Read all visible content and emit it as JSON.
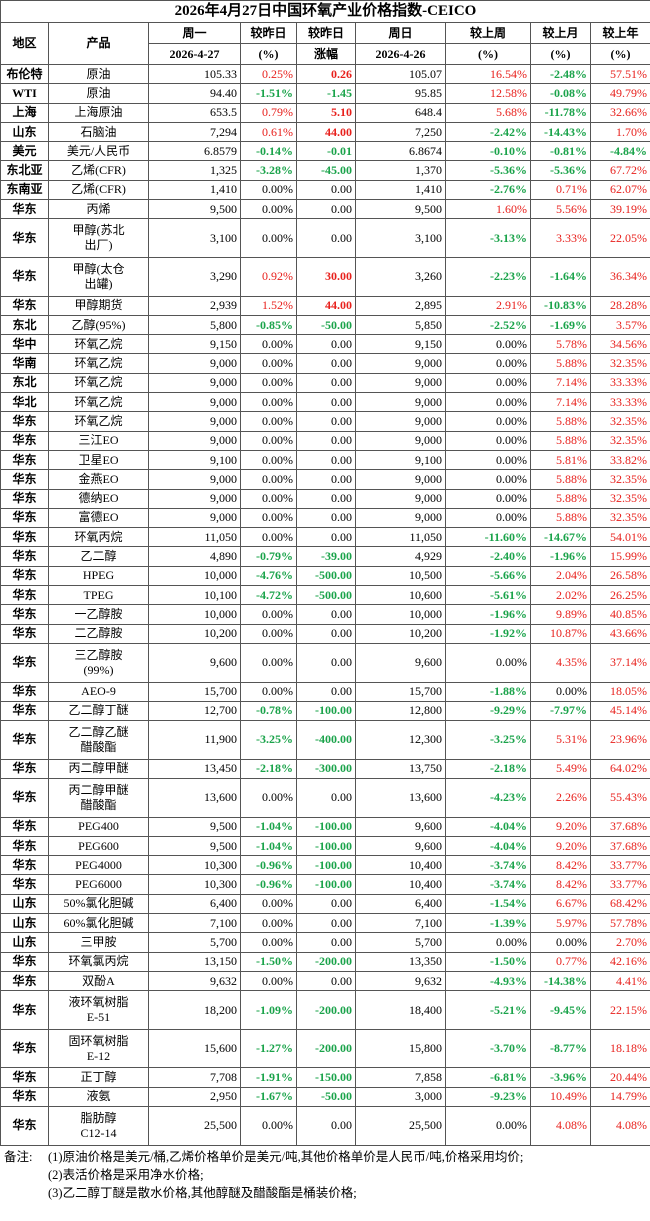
{
  "title": "2026年4月27日中国环氧产业价格指数-CEICO",
  "header": {
    "row1": [
      "地区",
      "产品",
      "周一",
      "较昨日",
      "较昨日",
      "周日",
      "较上周",
      "较上月",
      "较上年"
    ],
    "row2": [
      "2026-4-27",
      "(%)",
      "涨幅",
      "2026-4-26",
      "(%)",
      "(%)",
      "(%)"
    ]
  },
  "table": {
    "rows": [
      [
        "布伦特",
        "原油",
        "105.33",
        "0.25%",
        "0.26",
        "105.07",
        "16.54%",
        "-2.48%",
        "57.51%"
      ],
      [
        "WTI",
        "原油",
        "94.40",
        "-1.51%",
        "-1.45",
        "95.85",
        "12.58%",
        "-0.08%",
        "49.79%"
      ],
      [
        "上海",
        "上海原油",
        "653.5",
        "0.79%",
        "5.10",
        "648.4",
        "5.68%",
        "-11.78%",
        "32.66%"
      ],
      [
        "山东",
        "石脑油",
        "7,294",
        "0.61%",
        "44.00",
        "7,250",
        "-2.42%",
        "-14.43%",
        "1.70%"
      ],
      [
        "美元",
        "美元/人民币",
        "6.8579",
        "-0.14%",
        "-0.01",
        "6.8674",
        "-0.10%",
        "-0.81%",
        "-4.84%"
      ],
      [
        "东北亚",
        "乙烯(CFR)",
        "1,325",
        "-3.28%",
        "-45.00",
        "1,370",
        "-5.36%",
        "-5.36%",
        "67.72%"
      ],
      [
        "东南亚",
        "乙烯(CFR)",
        "1,410",
        "0.00%",
        "0.00",
        "1,410",
        "-2.76%",
        "0.71%",
        "62.07%"
      ],
      [
        "华东",
        "丙烯",
        "9,500",
        "0.00%",
        "0.00",
        "9,500",
        "1.60%",
        "5.56%",
        "39.19%"
      ],
      [
        "华东",
        "甲醇(苏北\n出厂)",
        "3,100",
        "0.00%",
        "0.00",
        "3,100",
        "-3.13%",
        "3.33%",
        "22.05%"
      ],
      [
        "华东",
        "甲醇(太仓\n出罐)",
        "3,290",
        "0.92%",
        "30.00",
        "3,260",
        "-2.23%",
        "-1.64%",
        "36.34%"
      ],
      [
        "华东",
        "甲醇期货",
        "2,939",
        "1.52%",
        "44.00",
        "2,895",
        "2.91%",
        "-10.83%",
        "28.28%"
      ],
      [
        "东北",
        "乙醇(95%)",
        "5,800",
        "-0.85%",
        "-50.00",
        "5,850",
        "-2.52%",
        "-1.69%",
        "3.57%"
      ],
      [
        "华中",
        "环氧乙烷",
        "9,150",
        "0.00%",
        "0.00",
        "9,150",
        "0.00%",
        "5.78%",
        "34.56%"
      ],
      [
        "华南",
        "环氧乙烷",
        "9,000",
        "0.00%",
        "0.00",
        "9,000",
        "0.00%",
        "5.88%",
        "32.35%"
      ],
      [
        "东北",
        "环氧乙烷",
        "9,000",
        "0.00%",
        "0.00",
        "9,000",
        "0.00%",
        "7.14%",
        "33.33%"
      ],
      [
        "华北",
        "环氧乙烷",
        "9,000",
        "0.00%",
        "0.00",
        "9,000",
        "0.00%",
        "7.14%",
        "33.33%"
      ],
      [
        "华东",
        "环氧乙烷",
        "9,000",
        "0.00%",
        "0.00",
        "9,000",
        "0.00%",
        "5.88%",
        "32.35%"
      ],
      [
        "华东",
        "三江EO",
        "9,000",
        "0.00%",
        "0.00",
        "9,000",
        "0.00%",
        "5.88%",
        "32.35%"
      ],
      [
        "华东",
        "卫星EO",
        "9,100",
        "0.00%",
        "0.00",
        "9,100",
        "0.00%",
        "5.81%",
        "33.82%"
      ],
      [
        "华东",
        "金燕EO",
        "9,000",
        "0.00%",
        "0.00",
        "9,000",
        "0.00%",
        "5.88%",
        "32.35%"
      ],
      [
        "华东",
        "德纳EO",
        "9,000",
        "0.00%",
        "0.00",
        "9,000",
        "0.00%",
        "5.88%",
        "32.35%"
      ],
      [
        "华东",
        "富德EO",
        "9,000",
        "0.00%",
        "0.00",
        "9,000",
        "0.00%",
        "5.88%",
        "32.35%"
      ],
      [
        "华东",
        "环氧丙烷",
        "11,050",
        "0.00%",
        "0.00",
        "11,050",
        "-11.60%",
        "-14.67%",
        "54.01%"
      ],
      [
        "华东",
        "乙二醇",
        "4,890",
        "-0.79%",
        "-39.00",
        "4,929",
        "-2.40%",
        "-1.96%",
        "15.99%"
      ],
      [
        "华东",
        "HPEG",
        "10,000",
        "-4.76%",
        "-500.00",
        "10,500",
        "-5.66%",
        "2.04%",
        "26.58%"
      ],
      [
        "华东",
        "TPEG",
        "10,100",
        "-4.72%",
        "-500.00",
        "10,600",
        "-5.61%",
        "2.02%",
        "26.25%"
      ],
      [
        "华东",
        "一乙醇胺",
        "10,000",
        "0.00%",
        "0.00",
        "10,000",
        "-1.96%",
        "9.89%",
        "40.85%"
      ],
      [
        "华东",
        "二乙醇胺",
        "10,200",
        "0.00%",
        "0.00",
        "10,200",
        "-1.92%",
        "10.87%",
        "43.66%"
      ],
      [
        "华东",
        "三乙醇胺\n(99%)",
        "9,600",
        "0.00%",
        "0.00",
        "9,600",
        "0.00%",
        "4.35%",
        "37.14%"
      ],
      [
        "华东",
        "AEO-9",
        "15,700",
        "0.00%",
        "0.00",
        "15,700",
        "-1.88%",
        "0.00%",
        "18.05%"
      ],
      [
        "华东",
        "乙二醇丁醚",
        "12,700",
        "-0.78%",
        "-100.00",
        "12,800",
        "-9.29%",
        "-7.97%",
        "45.14%"
      ],
      [
        "华东",
        "乙二醇乙醚\n醋酸酯",
        "11,900",
        "-3.25%",
        "-400.00",
        "12,300",
        "-3.25%",
        "5.31%",
        "23.96%"
      ],
      [
        "华东",
        "丙二醇甲醚",
        "13,450",
        "-2.18%",
        "-300.00",
        "13,750",
        "-2.18%",
        "5.49%",
        "64.02%"
      ],
      [
        "华东",
        "丙二醇甲醚\n醋酸酯",
        "13,600",
        "0.00%",
        "0.00",
        "13,600",
        "-4.23%",
        "2.26%",
        "55.43%"
      ],
      [
        "华东",
        "PEG400",
        "9,500",
        "-1.04%",
        "-100.00",
        "9,600",
        "-4.04%",
        "9.20%",
        "37.68%"
      ],
      [
        "华东",
        "PEG600",
        "9,500",
        "-1.04%",
        "-100.00",
        "9,600",
        "-4.04%",
        "9.20%",
        "37.68%"
      ],
      [
        "华东",
        "PEG4000",
        "10,300",
        "-0.96%",
        "-100.00",
        "10,400",
        "-3.74%",
        "8.42%",
        "33.77%"
      ],
      [
        "华东",
        "PEG6000",
        "10,300",
        "-0.96%",
        "-100.00",
        "10,400",
        "-3.74%",
        "8.42%",
        "33.77%"
      ],
      [
        "山东",
        "50%氯化胆碱",
        "6,400",
        "0.00%",
        "0.00",
        "6,400",
        "-1.54%",
        "6.67%",
        "68.42%"
      ],
      [
        "山东",
        "60%氯化胆碱",
        "7,100",
        "0.00%",
        "0.00",
        "7,100",
        "-1.39%",
        "5.97%",
        "57.78%"
      ],
      [
        "山东",
        "三甲胺",
        "5,700",
        "0.00%",
        "0.00",
        "5,700",
        "0.00%",
        "0.00%",
        "2.70%"
      ],
      [
        "华东",
        "环氧氯丙烷",
        "13,150",
        "-1.50%",
        "-200.00",
        "13,350",
        "-1.50%",
        "0.77%",
        "42.16%"
      ],
      [
        "华东",
        "双酚A",
        "9,632",
        "0.00%",
        "0.00",
        "9,632",
        "-4.93%",
        "-14.38%",
        "4.41%"
      ],
      [
        "华东",
        "液环氧树脂\nE-51",
        "18,200",
        "-1.09%",
        "-200.00",
        "18,400",
        "-5.21%",
        "-9.45%",
        "22.15%"
      ],
      [
        "华东",
        "固环氧树脂\nE-12",
        "15,600",
        "-1.27%",
        "-200.00",
        "15,800",
        "-3.70%",
        "-8.77%",
        "18.18%"
      ],
      [
        "华东",
        "正丁醇",
        "7,708",
        "-1.91%",
        "-150.00",
        "7,858",
        "-6.81%",
        "-3.96%",
        "20.44%"
      ],
      [
        "华东",
        "液氨",
        "2,950",
        "-1.67%",
        "-50.00",
        "3,000",
        "-9.23%",
        "10.49%",
        "14.79%"
      ],
      [
        "华东",
        "脂肪醇\nC12-14",
        "25,500",
        "0.00%",
        "0.00",
        "25,500",
        "0.00%",
        "4.08%",
        "4.08%"
      ]
    ]
  },
  "notes": {
    "label": "备注:",
    "items": [
      "(1)原油价格是美元/桶,乙烯价格单价是美元/吨,其他价格单价是人民币/吨,价格采用均价;",
      "(2)表活价格是采用净水价格;",
      "(3)乙二醇丁醚是散水价格,其他醇醚及醋酸酯是桶装价格;"
    ]
  }
}
